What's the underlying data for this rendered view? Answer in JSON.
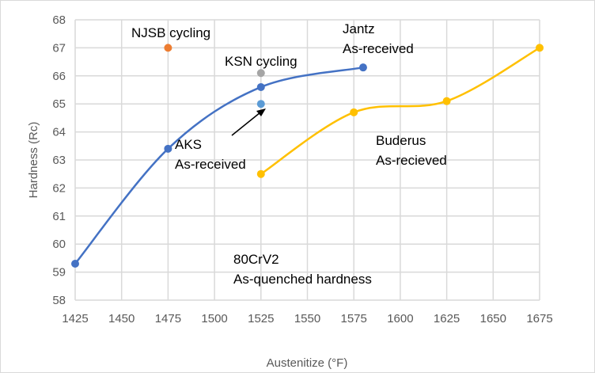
{
  "chart_data": {
    "type": "scatter",
    "title": "",
    "xlabel": "Austenitize (°F)",
    "ylabel": "Hardness (Rc)",
    "xlim": [
      1425,
      1675
    ],
    "ylim": [
      58,
      68
    ],
    "xticks": [
      1425,
      1450,
      1475,
      1500,
      1525,
      1550,
      1575,
      1600,
      1625,
      1650,
      1675
    ],
    "yticks": [
      58,
      59,
      60,
      61,
      62,
      63,
      64,
      65,
      66,
      67,
      68
    ],
    "grid": true,
    "series": [
      {
        "name": "Jantz",
        "color": "#4472c4",
        "smooth": true,
        "points": [
          [
            1425,
            59.3
          ],
          [
            1475,
            63.4
          ],
          [
            1525,
            65.6
          ],
          [
            1580,
            66.3
          ]
        ]
      },
      {
        "name": "Buderus",
        "color": "#ffc000",
        "smooth": true,
        "points": [
          [
            1525,
            62.5
          ],
          [
            1575,
            64.7
          ],
          [
            1625,
            65.1
          ],
          [
            1675,
            67.0
          ]
        ]
      },
      {
        "name": "NJSB",
        "color": "#ed7d31",
        "smooth": false,
        "points": [
          [
            1475,
            67.0
          ]
        ]
      },
      {
        "name": "KSN",
        "color": "#a5a5a5",
        "smooth": false,
        "points": [
          [
            1525,
            66.1
          ]
        ]
      },
      {
        "name": "AKS",
        "color": "#5b9bd5",
        "smooth": false,
        "points": [
          [
            1525,
            65.0
          ]
        ]
      }
    ],
    "annotations": [
      {
        "lines": [
          "NJSB cycling"
        ]
      },
      {
        "lines": [
          "KSN cycling"
        ]
      },
      {
        "lines": [
          "Jantz",
          "As-received"
        ]
      },
      {
        "lines": [
          "AKS",
          "As-received"
        ]
      },
      {
        "lines": [
          "Buderus",
          "As-recieved"
        ]
      },
      {
        "lines": [
          "80CrV2",
          "As-quenched hardness"
        ]
      }
    ]
  }
}
